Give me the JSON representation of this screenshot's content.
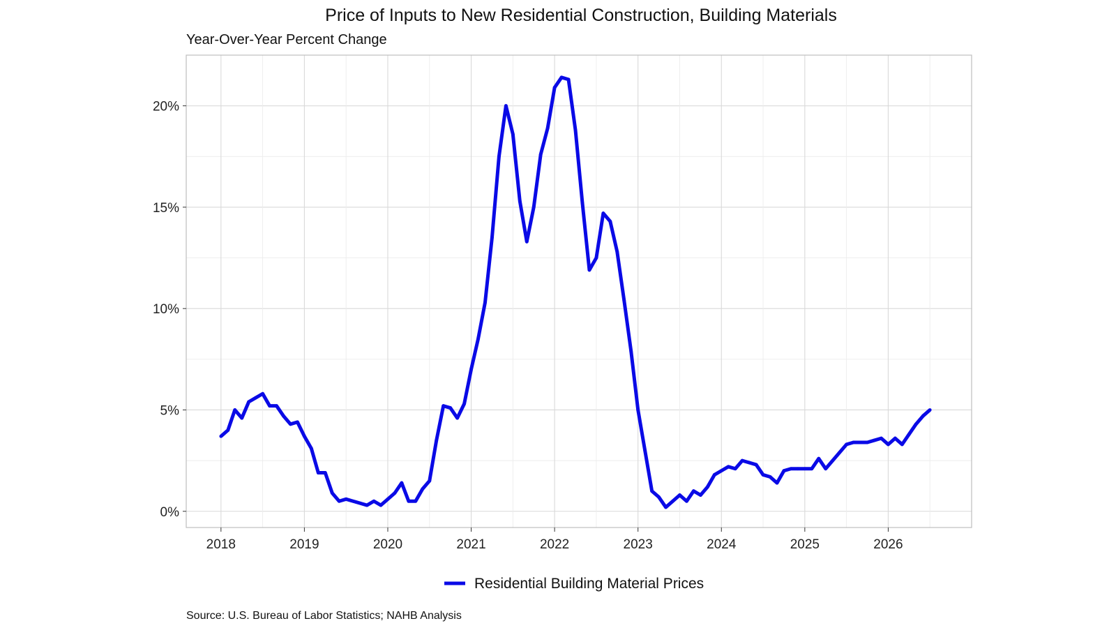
{
  "chart_data": {
    "type": "line",
    "title": "Price of Inputs to New Residential Construction, Building Materials",
    "subtitle": "Year-Over-Year Percent Change",
    "source": "Source: U.S. Bureau of Labor Statistics; NAHB Analysis",
    "xlabel": "",
    "ylabel": "",
    "x_ticks": [
      "2018",
      "2019",
      "2020",
      "2021",
      "2022",
      "2023",
      "2024",
      "2025",
      "2026"
    ],
    "y_ticks": [
      "0%",
      "5%",
      "10%",
      "15%",
      "20%"
    ],
    "xlim": [
      "2017-08",
      "2027-01"
    ],
    "ylim": [
      -0.8,
      22.5
    ],
    "grid": true,
    "legend_position": "bottom",
    "series": [
      {
        "name": "Residential Building Material Prices",
        "color": "#0a0ae6",
        "x": [
          "2018-01",
          "2018-02",
          "2018-03",
          "2018-04",
          "2018-05",
          "2018-06",
          "2018-07",
          "2018-08",
          "2018-09",
          "2018-10",
          "2018-11",
          "2018-12",
          "2019-01",
          "2019-02",
          "2019-03",
          "2019-04",
          "2019-05",
          "2019-06",
          "2019-07",
          "2019-08",
          "2019-09",
          "2019-10",
          "2019-11",
          "2019-12",
          "2020-01",
          "2020-02",
          "2020-03",
          "2020-04",
          "2020-05",
          "2020-06",
          "2020-07",
          "2020-08",
          "2020-09",
          "2020-10",
          "2020-11",
          "2020-12",
          "2021-01",
          "2021-02",
          "2021-03",
          "2021-04",
          "2021-05",
          "2021-06",
          "2021-07",
          "2021-08",
          "2021-09",
          "2021-10",
          "2021-11",
          "2021-12",
          "2022-01",
          "2022-02",
          "2022-03",
          "2022-04",
          "2022-05",
          "2022-06",
          "2022-07",
          "2022-08",
          "2022-09",
          "2022-10",
          "2022-11",
          "2022-12",
          "2023-01",
          "2023-02",
          "2023-03",
          "2023-04",
          "2023-05",
          "2023-06",
          "2023-07",
          "2023-08",
          "2023-09",
          "2023-10",
          "2023-11",
          "2023-12",
          "2024-01",
          "2024-02",
          "2024-03",
          "2024-04",
          "2024-05",
          "2024-06",
          "2024-07",
          "2024-08",
          "2024-09",
          "2024-10",
          "2024-11",
          "2024-12",
          "2025-01",
          "2025-02",
          "2025-03",
          "2025-04",
          "2025-05",
          "2025-06",
          "2025-07",
          "2025-08",
          "2025-09",
          "2025-10",
          "2025-11",
          "2025-12",
          "2026-01",
          "2026-02",
          "2026-03",
          "2026-04",
          "2026-05",
          "2026-06",
          "2026-07"
        ],
        "values": [
          3.7,
          4.0,
          5.0,
          4.6,
          5.4,
          5.6,
          5.8,
          5.2,
          5.2,
          4.7,
          4.3,
          4.4,
          3.7,
          3.1,
          1.9,
          1.9,
          0.9,
          0.5,
          0.6,
          0.5,
          0.4,
          0.3,
          0.5,
          0.3,
          0.6,
          0.9,
          1.4,
          0.5,
          0.5,
          1.1,
          1.5,
          3.5,
          5.2,
          5.1,
          4.6,
          5.3,
          7.0,
          8.5,
          10.3,
          13.5,
          17.5,
          20.0,
          18.6,
          15.3,
          13.3,
          15.0,
          17.6,
          18.9,
          20.9,
          21.4,
          21.3,
          18.8,
          15.2,
          11.9,
          12.5,
          14.7,
          14.3,
          12.8,
          10.4,
          7.9,
          5.0,
          3.0,
          1.0,
          0.7,
          0.2,
          0.5,
          0.8,
          0.5,
          1.0,
          0.8,
          1.2,
          1.8,
          2.0,
          2.2,
          2.1,
          2.5,
          2.4,
          2.3,
          1.8,
          1.7,
          1.4,
          2.0,
          2.1,
          2.1,
          2.1,
          2.1,
          2.6,
          2.1,
          2.5,
          2.9,
          3.3,
          3.4,
          3.4,
          3.4,
          3.5,
          3.6,
          3.3,
          3.6,
          3.3,
          3.8,
          4.3,
          4.7,
          5.0
        ]
      }
    ]
  }
}
